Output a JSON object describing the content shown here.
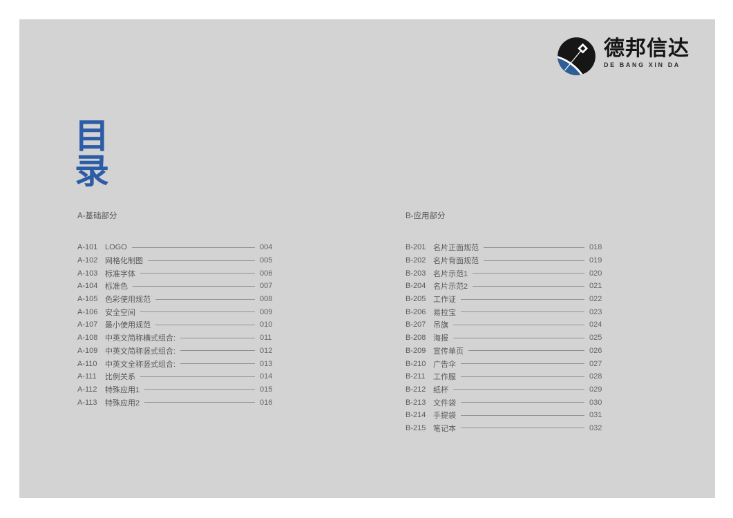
{
  "page": {
    "background": "#ffffff",
    "panel_background": "#d3d3d4"
  },
  "brand": {
    "name_cn": "德邦信达",
    "name_en": "DE BANG XIN DA",
    "mark_colors": {
      "dark": "#161616",
      "blue": "#2d5f96",
      "white": "#ffffff"
    }
  },
  "toc_title": {
    "text": "目录",
    "chars": [
      "目",
      "录"
    ],
    "color": "#2b5ca5"
  },
  "sections": [
    {
      "id": "A",
      "header": "A-基础部分",
      "items": [
        {
          "code": "A-101",
          "label": "LOGO",
          "page": "004"
        },
        {
          "code": "A-102",
          "label": "网格化制图",
          "page": "005"
        },
        {
          "code": "A-103",
          "label": "标准字体",
          "page": "006"
        },
        {
          "code": "A-104",
          "label": "标准色",
          "page": "007"
        },
        {
          "code": "A-105",
          "label": "色彩使用规范",
          "page": "008"
        },
        {
          "code": "A-106",
          "label": "安全空间",
          "page": "009"
        },
        {
          "code": "A-107",
          "label": "最小使用规范",
          "page": "010"
        },
        {
          "code": "A-108",
          "label": "中英文简称横式组合:",
          "page": "011"
        },
        {
          "code": "A-109",
          "label": "中英文简称竖式组合:",
          "page": "012"
        },
        {
          "code": "A-110",
          "label": "中英文全称竖式组合:",
          "page": "013"
        },
        {
          "code": "A-111",
          "label": "比例关系",
          "page": "014"
        },
        {
          "code": "A-112",
          "label": "特殊应用1",
          "page": "015"
        },
        {
          "code": "A-113",
          "label": "特殊应用2",
          "page": "016"
        }
      ]
    },
    {
      "id": "B",
      "header": "B-应用部分",
      "items": [
        {
          "code": "B-201",
          "label": "名片正面规范",
          "page": "018"
        },
        {
          "code": "B-202",
          "label": "名片背面规范",
          "page": "019"
        },
        {
          "code": "B-203",
          "label": "名片示范1",
          "page": "020"
        },
        {
          "code": "B-204",
          "label": "名片示范2",
          "page": "021"
        },
        {
          "code": "B-205",
          "label": "工作证",
          "page": "022"
        },
        {
          "code": "B-206",
          "label": "易拉宝",
          "page": "023"
        },
        {
          "code": "B-207",
          "label": "吊旗",
          "page": "024"
        },
        {
          "code": "B-208",
          "label": "海报",
          "page": "025"
        },
        {
          "code": "B-209",
          "label": "宣传单页",
          "page": "026"
        },
        {
          "code": "B-210",
          "label": "广告伞",
          "page": "027"
        },
        {
          "code": "B-211",
          "label": "工作服",
          "page": "028"
        },
        {
          "code": "B-212",
          "label": "纸杯",
          "page": "029"
        },
        {
          "code": "B-213",
          "label": "文件袋",
          "page": "030"
        },
        {
          "code": "B-214",
          "label": "手提袋",
          "page": "031"
        },
        {
          "code": "B-215",
          "label": "笔记本",
          "page": "032"
        }
      ]
    }
  ]
}
